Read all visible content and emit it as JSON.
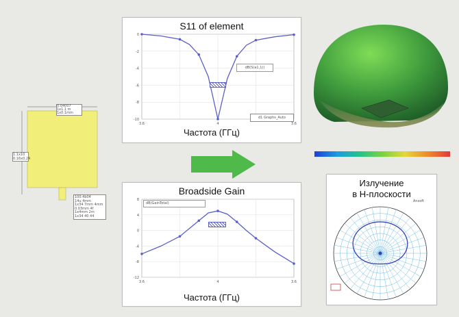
{
  "colors": {
    "background": "#e9e9e6",
    "antenna_patch": "#f1ee7a",
    "curve": "#5a5fc8",
    "arrow": "#4fba4a",
    "dome": "#3f9c3d",
    "polar_grid": "#67b8e0"
  },
  "antenna": {
    "dim_top": [
      "0.04007",
      "1x1.1 m",
      "1x0.1mm"
    ],
    "dim_left": [
      "1.1x10",
      "0.16x0.24"
    ],
    "legend": [
      "100.4b04",
      "14u 4mm",
      "1x34 7mm 4mm",
      "0.03mm 4f",
      "1x4mm 2m",
      "1x34 40 44"
    ]
  },
  "arrow_icon": "right-arrow",
  "charts": [
    {
      "title": "S11 of element",
      "xlabel": "Частота (ГГц)",
      "x_ticks": [
        "3.6",
        "4",
        "3.6"
      ],
      "y_ticks": [
        "0",
        "-2",
        "-4",
        "-6",
        "-8",
        "-10"
      ],
      "legend_box": "dB(S(a1,1))",
      "legend_tag": "d1 Graphs_Auto"
    },
    {
      "title": "Broadside Gain",
      "xlabel": "Частота (ГГц)",
      "x_ticks": [
        "3.6",
        "4",
        "3.6"
      ],
      "y_ticks": [
        "8",
        "4",
        "0",
        "-4",
        "-8",
        "-12"
      ],
      "legend_box": "dB(GainTotal)"
    }
  ],
  "polar": {
    "title_line1": "Излучение",
    "title_line2": "в Н-плоскости",
    "corner_label": "Ansoft"
  },
  "chart_data": [
    {
      "type": "line",
      "title": "S11 of element",
      "xlabel": "Частота (ГГц)",
      "ylabel": "",
      "x": [
        3.6,
        3.7,
        3.8,
        3.85,
        3.9,
        3.95,
        4.0,
        4.05,
        4.1,
        4.15,
        4.2,
        4.3,
        4.4
      ],
      "series": [
        {
          "values": [
            0.0,
            -0.2,
            -0.6,
            -1.2,
            -2.4,
            -5.0,
            -10.0,
            -5.2,
            -2.6,
            -1.3,
            -0.7,
            -0.3,
            -0.05
          ]
        }
      ],
      "ylim": [
        -10,
        0
      ],
      "grid": true
    },
    {
      "type": "line",
      "title": "Broadside Gain",
      "xlabel": "Частота (ГГц)",
      "ylabel": "",
      "x": [
        3.6,
        3.7,
        3.8,
        3.85,
        3.9,
        3.95,
        4.0,
        4.05,
        4.1,
        4.15,
        4.2,
        4.3,
        4.4
      ],
      "series": [
        {
          "values": [
            -6.0,
            -4.0,
            -1.5,
            0.5,
            2.5,
            4.5,
            5.0,
            4.2,
            2.2,
            0.0,
            -2.0,
            -5.5,
            -8.5
          ]
        }
      ],
      "ylim": [
        -12,
        8
      ],
      "grid": true
    }
  ]
}
